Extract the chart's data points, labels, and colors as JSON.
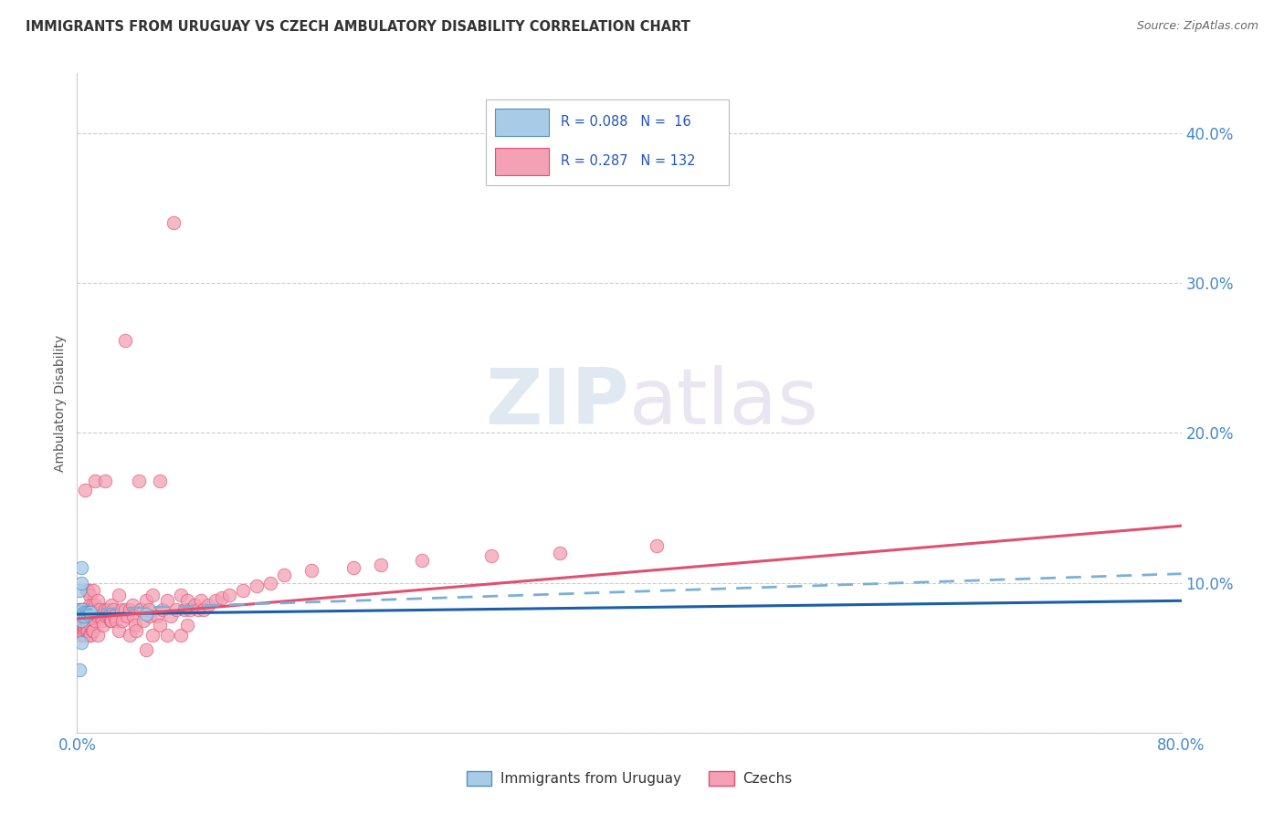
{
  "title": "IMMIGRANTS FROM URUGUAY VS CZECH AMBULATORY DISABILITY CORRELATION CHART",
  "source": "Source: ZipAtlas.com",
  "ylabel": "Ambulatory Disability",
  "xlim": [
    0.0,
    0.8
  ],
  "ylim": [
    0.0,
    0.44
  ],
  "xticks": [
    0.0,
    0.1,
    0.2,
    0.3,
    0.4,
    0.5,
    0.6,
    0.7,
    0.8
  ],
  "xticklabels": [
    "0.0%",
    "",
    "",
    "",
    "",
    "",
    "",
    "",
    "80.0%"
  ],
  "yticks": [
    0.0,
    0.1,
    0.2,
    0.3,
    0.4
  ],
  "yticklabels": [
    "",
    "10.0%",
    "20.0%",
    "30.0%",
    "40.0%"
  ],
  "legend_label1": "Immigrants from Uruguay",
  "legend_label2": "Czechs",
  "blue_scatter_x": [
    0.002,
    0.002,
    0.003,
    0.003,
    0.003,
    0.004,
    0.004,
    0.005,
    0.006,
    0.007,
    0.008,
    0.009,
    0.01,
    0.05,
    0.002,
    0.003
  ],
  "blue_scatter_y": [
    0.082,
    0.095,
    0.11,
    0.075,
    0.06,
    0.082,
    0.078,
    0.08,
    0.078,
    0.08,
    0.079,
    0.08,
    0.08,
    0.079,
    0.042,
    0.1
  ],
  "pink_scatter_x": [
    0.001,
    0.001,
    0.002,
    0.002,
    0.002,
    0.002,
    0.003,
    0.003,
    0.003,
    0.003,
    0.003,
    0.003,
    0.003,
    0.004,
    0.004,
    0.004,
    0.004,
    0.004,
    0.004,
    0.005,
    0.005,
    0.005,
    0.005,
    0.005,
    0.006,
    0.006,
    0.006,
    0.006,
    0.006,
    0.007,
    0.007,
    0.007,
    0.007,
    0.007,
    0.007,
    0.008,
    0.008,
    0.008,
    0.008,
    0.008,
    0.009,
    0.009,
    0.009,
    0.009,
    0.01,
    0.01,
    0.01,
    0.01,
    0.011,
    0.011,
    0.011,
    0.012,
    0.012,
    0.012,
    0.013,
    0.013,
    0.013,
    0.014,
    0.015,
    0.015,
    0.015,
    0.016,
    0.017,
    0.018,
    0.019,
    0.02,
    0.02,
    0.021,
    0.022,
    0.023,
    0.024,
    0.025,
    0.025,
    0.026,
    0.027,
    0.028,
    0.03,
    0.03,
    0.032,
    0.033,
    0.035,
    0.035,
    0.036,
    0.038,
    0.038,
    0.04,
    0.041,
    0.042,
    0.043,
    0.045,
    0.046,
    0.048,
    0.05,
    0.05,
    0.052,
    0.053,
    0.055,
    0.055,
    0.058,
    0.06,
    0.06,
    0.062,
    0.065,
    0.065,
    0.068,
    0.07,
    0.072,
    0.075,
    0.075,
    0.078,
    0.08,
    0.08,
    0.082,
    0.085,
    0.088,
    0.09,
    0.092,
    0.095,
    0.1,
    0.105,
    0.11,
    0.12,
    0.13,
    0.14,
    0.15,
    0.17,
    0.2,
    0.22,
    0.25,
    0.3,
    0.35,
    0.42
  ],
  "pink_scatter_y": [
    0.075,
    0.078,
    0.072,
    0.078,
    0.082,
    0.068,
    0.075,
    0.078,
    0.082,
    0.07,
    0.065,
    0.068,
    0.072,
    0.075,
    0.078,
    0.068,
    0.072,
    0.065,
    0.08,
    0.078,
    0.082,
    0.07,
    0.065,
    0.072,
    0.162,
    0.078,
    0.082,
    0.075,
    0.068,
    0.095,
    0.082,
    0.078,
    0.072,
    0.068,
    0.075,
    0.095,
    0.082,
    0.078,
    0.072,
    0.068,
    0.092,
    0.085,
    0.078,
    0.065,
    0.078,
    0.082,
    0.072,
    0.065,
    0.085,
    0.078,
    0.068,
    0.095,
    0.082,
    0.068,
    0.168,
    0.085,
    0.075,
    0.082,
    0.088,
    0.078,
    0.065,
    0.082,
    0.078,
    0.075,
    0.072,
    0.168,
    0.082,
    0.078,
    0.082,
    0.078,
    0.075,
    0.085,
    0.075,
    0.082,
    0.078,
    0.075,
    0.092,
    0.068,
    0.082,
    0.075,
    0.262,
    0.082,
    0.078,
    0.082,
    0.065,
    0.085,
    0.078,
    0.072,
    0.068,
    0.168,
    0.082,
    0.075,
    0.088,
    0.055,
    0.082,
    0.078,
    0.092,
    0.065,
    0.078,
    0.168,
    0.072,
    0.082,
    0.088,
    0.065,
    0.078,
    0.34,
    0.082,
    0.092,
    0.065,
    0.082,
    0.088,
    0.072,
    0.082,
    0.085,
    0.082,
    0.088,
    0.082,
    0.085,
    0.088,
    0.09,
    0.092,
    0.095,
    0.098,
    0.1,
    0.105,
    0.108,
    0.11,
    0.112,
    0.115,
    0.118,
    0.12,
    0.125
  ],
  "blue_line_x0": 0.0,
  "blue_line_x1": 0.8,
  "blue_line_y0": 0.079,
  "blue_line_y1": 0.088,
  "pink_line_x0": 0.0,
  "pink_line_x1": 0.8,
  "pink_line_y0": 0.076,
  "pink_line_y1": 0.138,
  "dash_line_x0": 0.0,
  "dash_line_x1": 0.8,
  "dash_line_y0": 0.082,
  "dash_line_y1": 0.106,
  "background_color": "#ffffff",
  "grid_color": "#cccccc",
  "blue_face": "#a8cce8",
  "blue_edge": "#5090c0",
  "blue_line": "#1a5fa8",
  "pink_face": "#f4a0b5",
  "pink_edge": "#e05070",
  "pink_line": "#e05070",
  "dash_color": "#7ab0d8",
  "tick_color": "#4488cc",
  "title_color": "#333333",
  "source_color": "#666666",
  "ylabel_color": "#555555",
  "watermark_color": "#d0dce8"
}
